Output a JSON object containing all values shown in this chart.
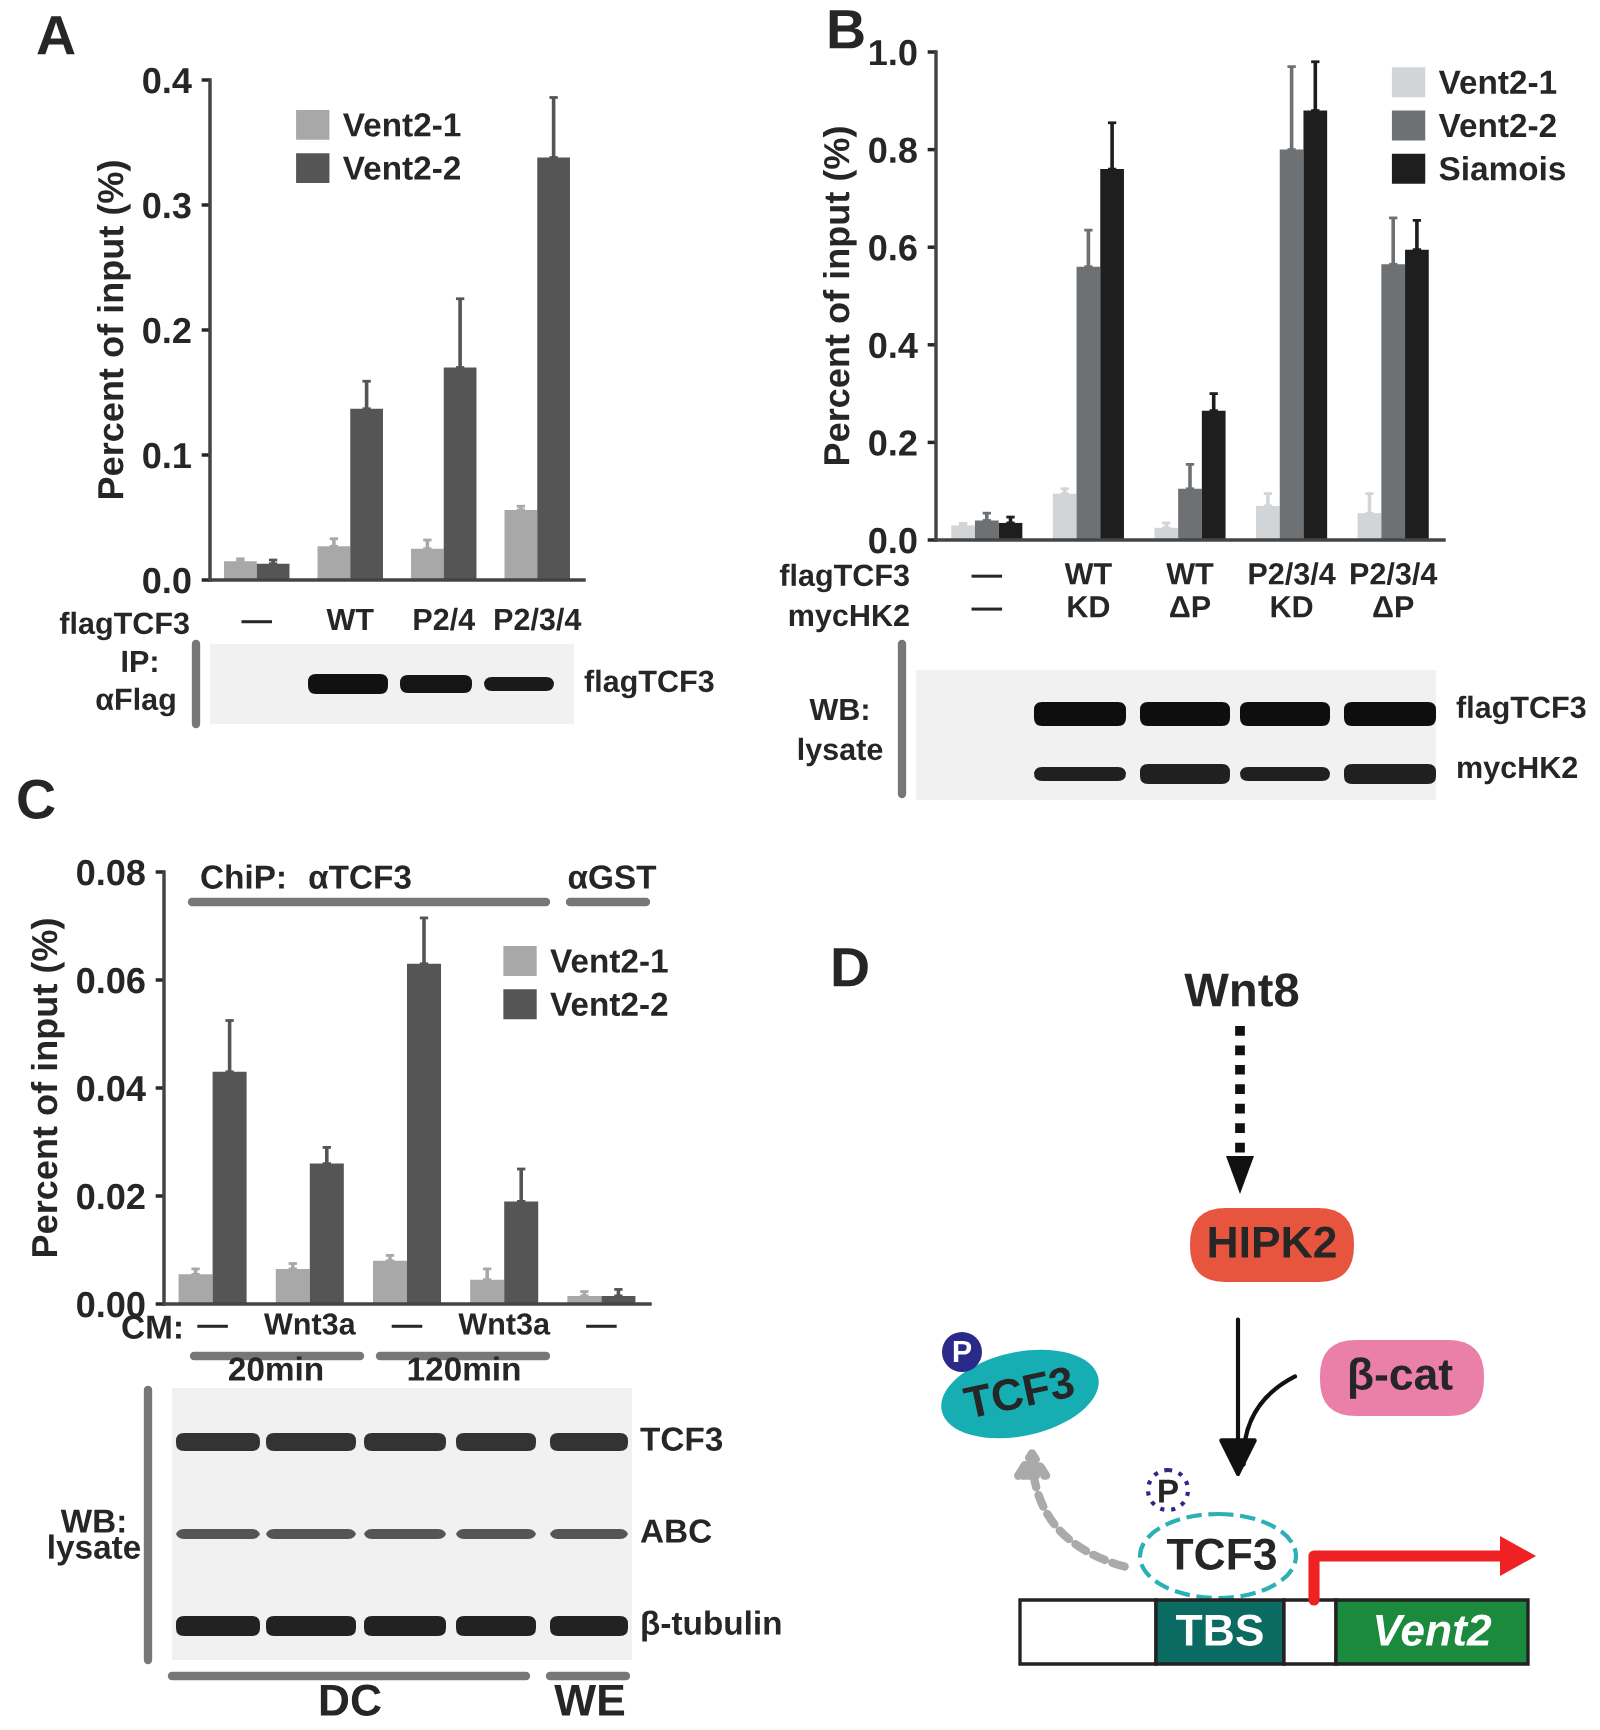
{
  "chart_data": [
    {
      "type": "bar",
      "categories": [
        "—",
        "WT",
        "P2/4",
        "P2/3/4"
      ],
      "ylabel": "Percent of input (%)",
      "ylim": [
        0.0,
        0.4
      ],
      "yticks": [
        {
          "value": 0.0,
          "label": "0.0"
        },
        {
          "value": 0.1,
          "label": "0.1"
        },
        {
          "value": 0.2,
          "label": "0.2"
        },
        {
          "value": 0.3,
          "label": "0.3"
        },
        {
          "value": 0.4,
          "label": "0.4"
        }
      ],
      "legend": "top left",
      "series": [
        {
          "name": "Vent2-1",
          "color": "#a8a8a8",
          "values": [
            0.015,
            0.027,
            0.025,
            0.056
          ],
          "errors": [
            [
              0.015,
              0.017
            ],
            [
              0.027,
              0.033
            ],
            [
              0.025,
              0.032
            ],
            [
              0.056,
              0.059
            ]
          ]
        },
        {
          "name": "Vent2-2",
          "color": "#555555",
          "values": [
            0.013,
            0.137,
            0.17,
            0.338
          ],
          "errors": [
            [
              0.013,
              0.016
            ],
            [
              0.137,
              0.159
            ],
            [
              0.17,
              0.225
            ],
            [
              0.338,
              0.386
            ]
          ]
        }
      ],
      "annotations": [
        "A",
        "flagTCF3",
        "IP:",
        "αFlag",
        "flagTCF3"
      ]
    },
    {
      "type": "bar",
      "categories": [
        "—\n—",
        "WT\nKD",
        "WT\nΔP",
        "P2/3/4\nKD",
        "P2/3/4\nΔP"
      ],
      "ylabel": "Percent of input (%)",
      "ylim": [
        0.0,
        1.0
      ],
      "yticks": [
        {
          "value": 0.0,
          "label": "0.0"
        },
        {
          "value": 0.2,
          "label": "0.2"
        },
        {
          "value": 0.4,
          "label": "0.4"
        },
        {
          "value": 0.6,
          "label": "0.6"
        },
        {
          "value": 0.8,
          "label": "0.8"
        },
        {
          "value": 1.0,
          "label": "1.0"
        }
      ],
      "legend": "top right",
      "series": [
        {
          "name": "Vent2-1",
          "color": "#d2d5d8",
          "values": [
            0.03,
            0.095,
            0.025,
            0.07,
            0.055
          ],
          "errors": [
            [
              0.03,
              0.034
            ],
            [
              0.095,
              0.105
            ],
            [
              0.025,
              0.035
            ],
            [
              0.07,
              0.095
            ],
            [
              0.055,
              0.095
            ]
          ]
        },
        {
          "name": "Vent2-2",
          "color": "#6e7174",
          "values": [
            0.04,
            0.56,
            0.105,
            0.8,
            0.565
          ],
          "errors": [
            [
              0.04,
              0.055
            ],
            [
              0.56,
              0.635
            ],
            [
              0.105,
              0.155
            ],
            [
              0.8,
              0.97
            ],
            [
              0.565,
              0.66
            ]
          ]
        },
        {
          "name": "Siamois",
          "color": "#1e1e1e",
          "values": [
            0.035,
            0.76,
            0.265,
            0.88,
            0.595
          ],
          "errors": [
            [
              0.035,
              0.047
            ],
            [
              0.76,
              0.855
            ],
            [
              0.265,
              0.3
            ],
            [
              0.88,
              0.98
            ],
            [
              0.595,
              0.655
            ]
          ]
        }
      ],
      "annotations": [
        "B",
        "flagTCF3",
        "mycHK2",
        "WB:",
        "lysate",
        "flagTCF3",
        "mycHK2"
      ]
    },
    {
      "type": "bar",
      "categories": [
        "—",
        "Wnt3a",
        "—",
        "Wnt3a",
        "—"
      ],
      "ylabel": "Percent of input (%)",
      "ylim": [
        0.0,
        0.08
      ],
      "yticks": [
        {
          "value": 0.0,
          "label": "0.00"
        },
        {
          "value": 0.02,
          "label": "0.02"
        },
        {
          "value": 0.04,
          "label": "0.04"
        },
        {
          "value": 0.06,
          "label": "0.06"
        },
        {
          "value": 0.08,
          "label": "0.08"
        }
      ],
      "legend": "right",
      "series": [
        {
          "name": "Vent2-1",
          "color": "#a8a8a8",
          "values": [
            0.0055,
            0.0065,
            0.008,
            0.0045,
            0.0015
          ],
          "errors": [
            [
              0.0055,
              0.0065
            ],
            [
              0.0065,
              0.0075
            ],
            [
              0.008,
              0.009
            ],
            [
              0.0045,
              0.0065
            ],
            [
              0.0015,
              0.0023
            ]
          ]
        },
        {
          "name": "Vent2-2",
          "color": "#555555",
          "values": [
            0.043,
            0.026,
            0.063,
            0.019,
            0.0015
          ],
          "errors": [
            [
              0.043,
              0.0525
            ],
            [
              0.026,
              0.029
            ],
            [
              0.063,
              0.0715
            ],
            [
              0.019,
              0.025
            ],
            [
              0.0015,
              0.0027
            ]
          ]
        }
      ],
      "annotations": [
        "C",
        "ChiP:",
        "αTCF3",
        "αGST",
        "CM:",
        "20min",
        "120min",
        "WB:",
        "lysate",
        "TCF3",
        "ABC",
        "β-tubulin",
        "DC",
        "WE"
      ]
    },
    {
      "type": "other",
      "annotations": [
        "D",
        "Wnt8",
        "HIPK2",
        "β-cat",
        "P",
        "TCF3",
        "P",
        "TCF3",
        "TBS",
        "Vent2"
      ]
    }
  ]
}
